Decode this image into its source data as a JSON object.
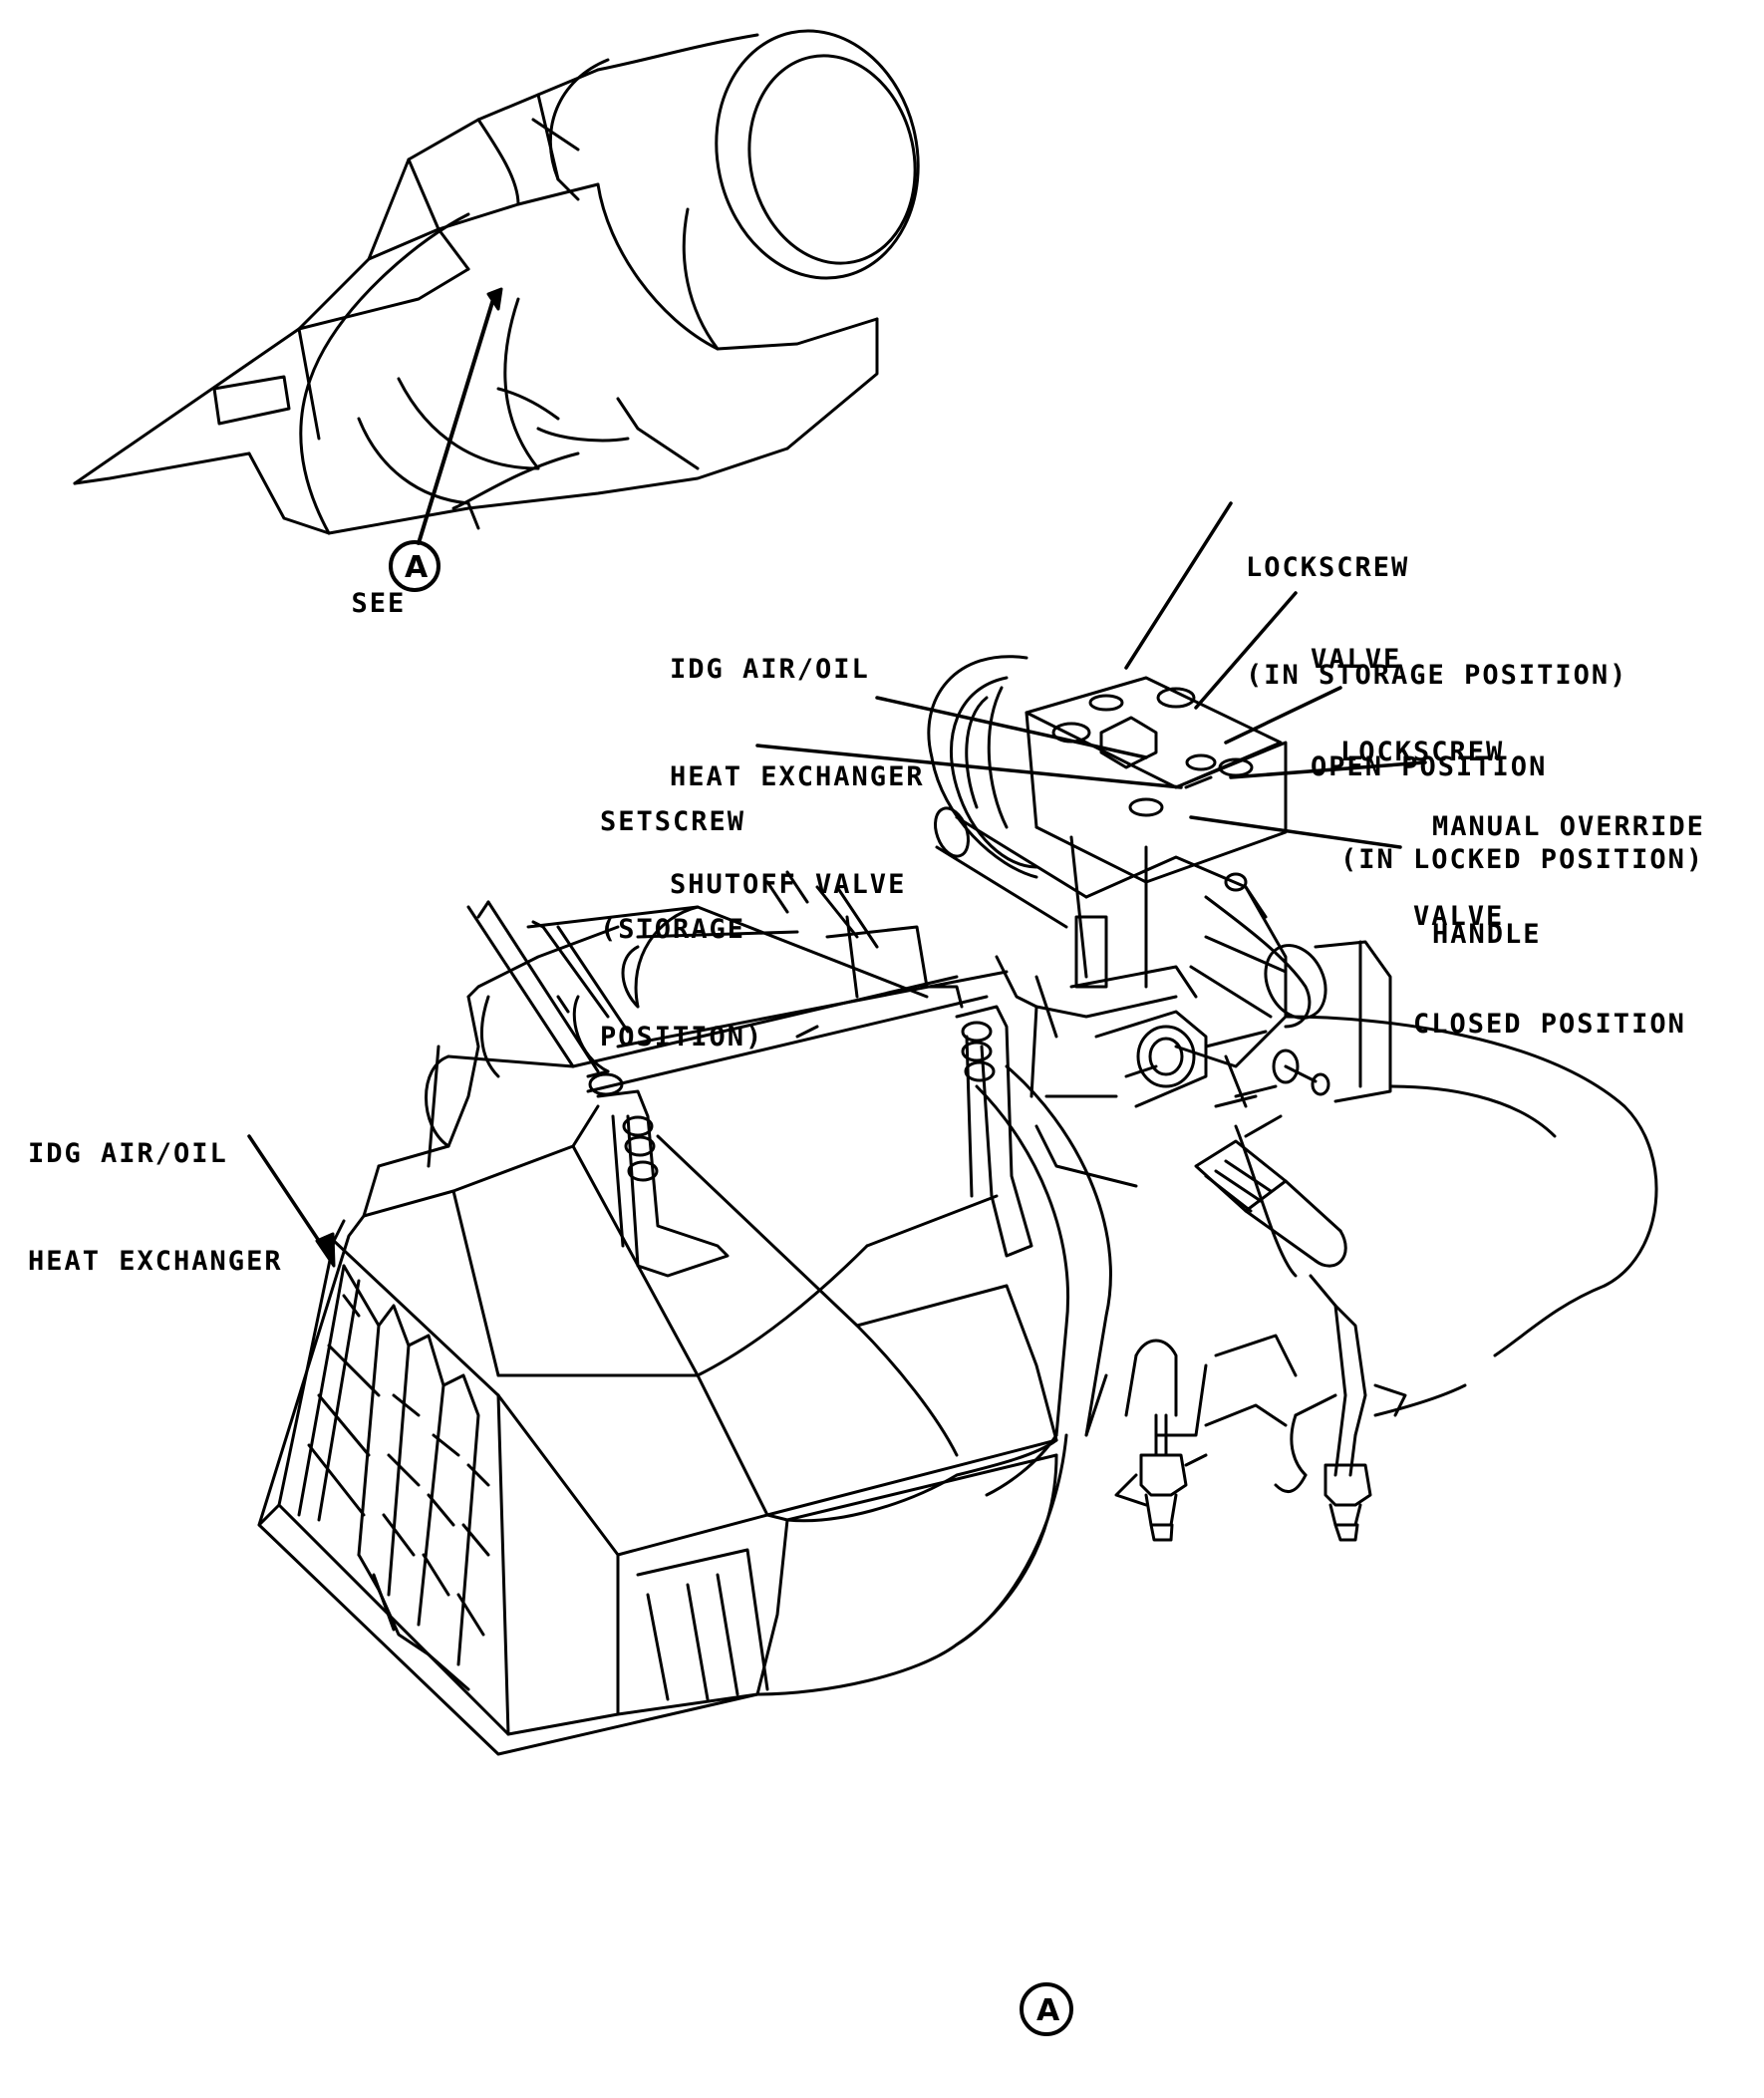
{
  "figure": {
    "see_text": "SEE",
    "detail_letter": "A",
    "labels": {
      "lockscrew_storage_1": "LOCKSCREW",
      "lockscrew_storage_2": "(IN STORAGE POSITION)",
      "valve_open_1": "VALVE",
      "valve_open_2": "OPEN POSITION",
      "idg_valve_1": "IDG AIR/OIL",
      "idg_valve_2": "HEAT EXCHANGER",
      "idg_valve_3": "SHUTOFF VALVE",
      "lockscrew_locked_1": "LOCKSCREW",
      "lockscrew_locked_2": "(IN LOCKED POSITION)",
      "setscrew_1": "SETSCREW",
      "setscrew_2": "(STORAGE",
      "setscrew_3": "POSITION)",
      "manual_override_1": "MANUAL OVERRIDE",
      "manual_override_2": "HANDLE",
      "valve_closed_1": "VALVE",
      "valve_closed_2": "CLOSED POSITION",
      "heat_exchanger_1": "IDG AIR/OIL",
      "heat_exchanger_2": "HEAT EXCHANGER"
    }
  }
}
